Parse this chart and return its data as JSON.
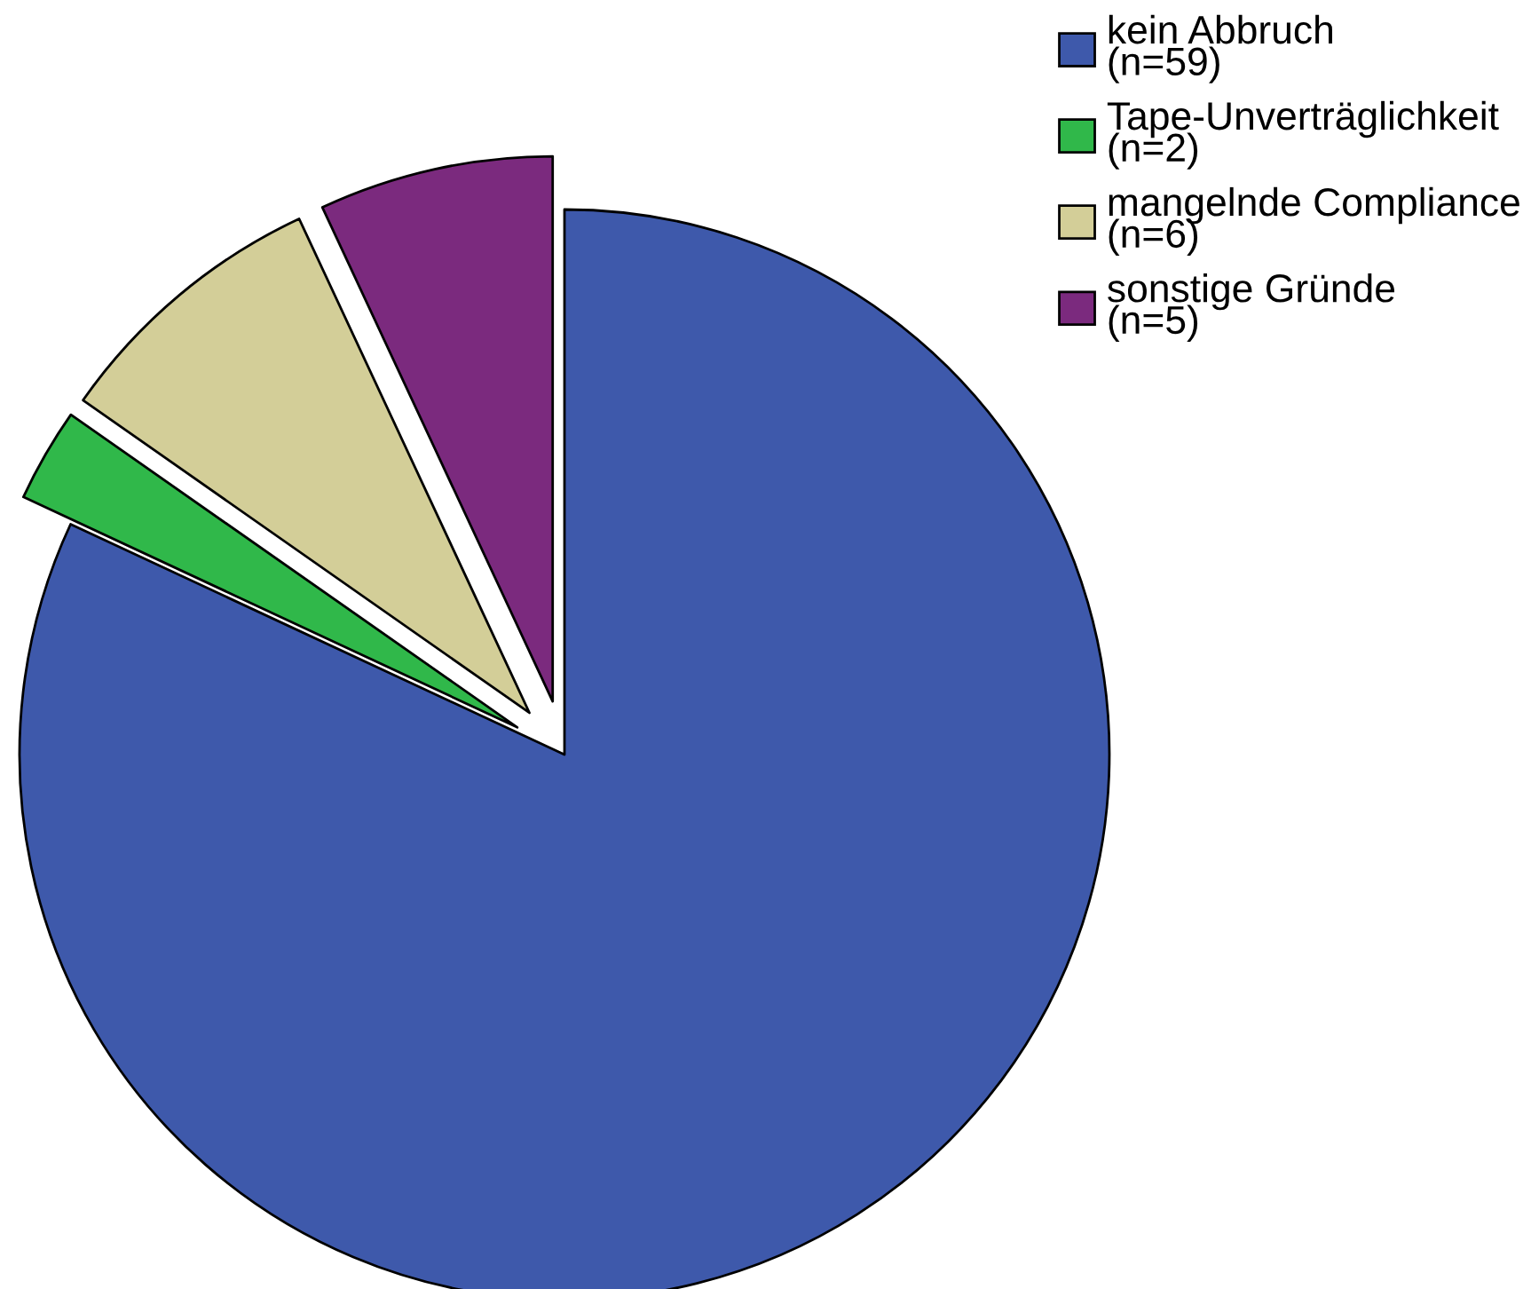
{
  "chart_data": {
    "type": "pie",
    "categories": [
      "kein Abbruch\n(n=59)",
      "Tape-Unverträglichkeit\n(n=2)",
      "mangelnde Compliance\n(n=6)",
      "sonstige Gründe\n(n=5)"
    ],
    "values": [
      59,
      2,
      6,
      5
    ],
    "colors": [
      "#3e59ab",
      "#30b84a",
      "#d3ce98",
      "#7b2a7e"
    ],
    "legend": "top right"
  }
}
